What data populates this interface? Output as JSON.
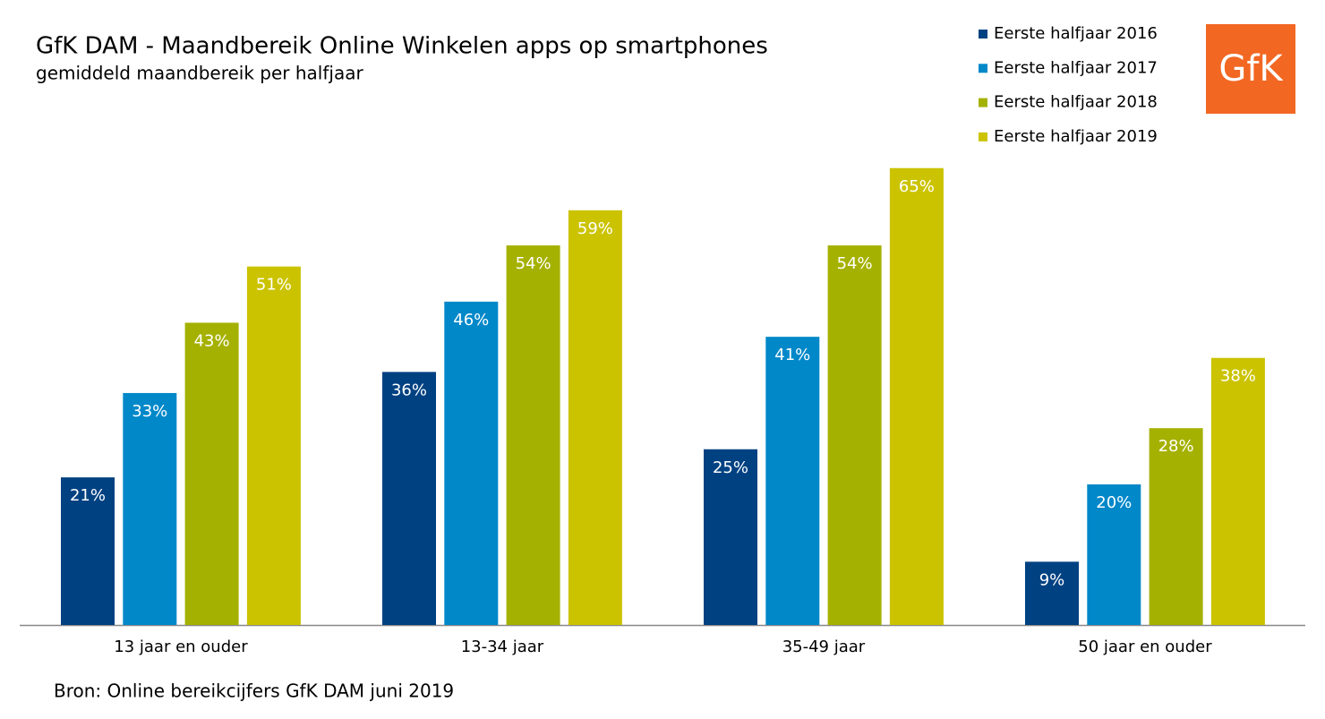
{
  "chart_data": {
    "type": "bar",
    "title": "GfK DAM - Maandbereik Online Winkelen apps op smartphones",
    "subtitle": "gemiddeld maandbereik per halfjaar",
    "source": "Bron: Online bereikcijfers GfK DAM juni 2019",
    "logo": "GfK",
    "legend_position": "top-right",
    "categories": [
      "13 jaar en ouder",
      "13-34 jaar",
      "35-49 jaar",
      "50 jaar en ouder"
    ],
    "series": [
      {
        "name": "Eerste halfjaar 2016",
        "color": "#004182",
        "values": [
          21,
          36,
          25,
          9
        ],
        "value_labels": [
          "21%",
          "36%",
          "25%",
          "9%"
        ]
      },
      {
        "name": "Eerste halfjaar 2017",
        "color": "#0088c9",
        "values": [
          33,
          46,
          41,
          20
        ],
        "value_labels": [
          "33%",
          "46%",
          "41%",
          "20%"
        ]
      },
      {
        "name": "Eerste halfjaar 2018",
        "color": "#a5b100",
        "values": [
          43,
          54,
          54,
          28
        ],
        "value_labels": [
          "43%",
          "54%",
          "54%",
          "28%"
        ]
      },
      {
        "name": "Eerste halfjaar 2019",
        "color": "#cbc300",
        "values": [
          51,
          59,
          65,
          38
        ],
        "value_labels": [
          "51%",
          "59%",
          "65%",
          "38%"
        ]
      }
    ]
  }
}
